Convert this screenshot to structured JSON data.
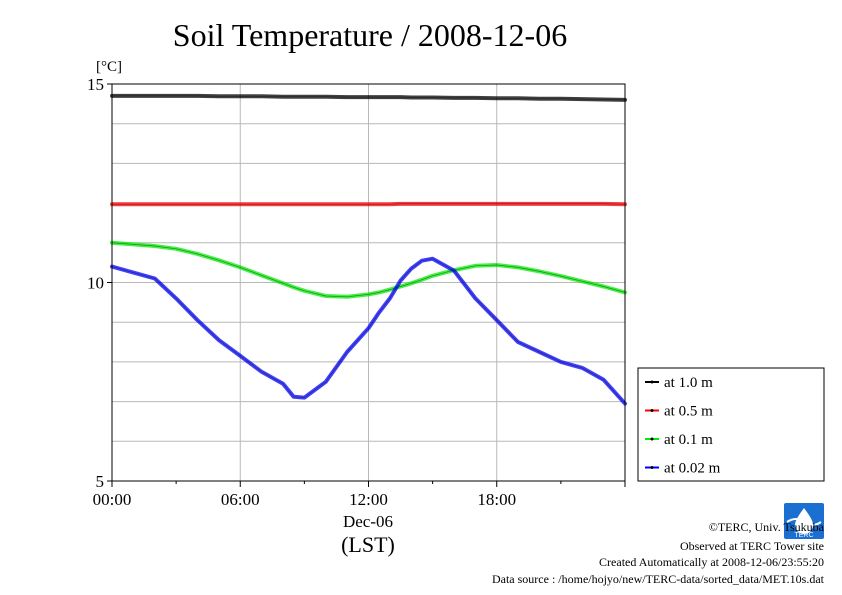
{
  "chart_data": {
    "type": "line",
    "title": "Soil Temperature / 2008-12-06",
    "ylabel": "[°C]",
    "xlabel_date": "Dec-06",
    "xlabel_zone": "(LST)",
    "xlim": [
      0,
      24
    ],
    "ylim": [
      5,
      15
    ],
    "yticks": [
      5,
      10,
      15
    ],
    "xtick_labels": [
      "00:00",
      "06:00",
      "12:00",
      "18:00"
    ],
    "x_hours": [
      0,
      1,
      2,
      3,
      4,
      5,
      6,
      7,
      8,
      8.5,
      9,
      10,
      11,
      12,
      12.5,
      13,
      13.5,
      14,
      14.5,
      15,
      16,
      17,
      18,
      19,
      20,
      21,
      22,
      23,
      24
    ],
    "series": [
      {
        "name": "at 1.0 m",
        "color": "#000000",
        "values": [
          14.7,
          14.7,
          14.7,
          14.7,
          14.7,
          14.69,
          14.69,
          14.69,
          14.68,
          14.68,
          14.68,
          14.68,
          14.67,
          14.67,
          14.67,
          14.67,
          14.67,
          14.66,
          14.66,
          14.66,
          14.65,
          14.65,
          14.64,
          14.64,
          14.63,
          14.63,
          14.62,
          14.61,
          14.6
        ]
      },
      {
        "name": "at 0.5 m",
        "color": "#ff0000",
        "values": [
          11.97,
          11.97,
          11.97,
          11.97,
          11.97,
          11.97,
          11.97,
          11.97,
          11.97,
          11.97,
          11.97,
          11.97,
          11.97,
          11.97,
          11.97,
          11.97,
          11.98,
          11.98,
          11.98,
          11.98,
          11.98,
          11.98,
          11.98,
          11.98,
          11.98,
          11.98,
          11.98,
          11.98,
          11.97
        ]
      },
      {
        "name": "at 0.1 m",
        "color": "#00ee00",
        "values": [
          11.0,
          10.96,
          10.92,
          10.85,
          10.72,
          10.56,
          10.38,
          10.18,
          9.98,
          9.88,
          9.79,
          9.66,
          9.64,
          9.7,
          9.75,
          9.82,
          9.9,
          9.98,
          10.07,
          10.17,
          10.31,
          10.42,
          10.44,
          10.38,
          10.28,
          10.16,
          10.03,
          9.9,
          9.75
        ]
      },
      {
        "name": "at 0.02 m",
        "color": "#0000ff",
        "values": [
          10.4,
          10.25,
          10.1,
          9.6,
          9.05,
          8.55,
          8.15,
          7.75,
          7.45,
          7.12,
          7.1,
          7.5,
          8.25,
          8.85,
          9.25,
          9.6,
          10.05,
          10.35,
          10.55,
          10.6,
          10.3,
          9.6,
          9.05,
          8.5,
          8.25,
          8.0,
          7.85,
          7.55,
          6.95
        ]
      }
    ],
    "legend_position": "right"
  },
  "footer": {
    "credit": "©TERC, Univ. Tsukuba",
    "site": "Observed at TERC Tower site",
    "created": "Created Automatically at 2008-12-06/23:55:20",
    "source": "Data source : /home/hojyo/new/TERC-data/sorted_data/MET.10s.dat"
  },
  "logo": {
    "icon": "terc-logo-icon",
    "text": "TERC"
  }
}
